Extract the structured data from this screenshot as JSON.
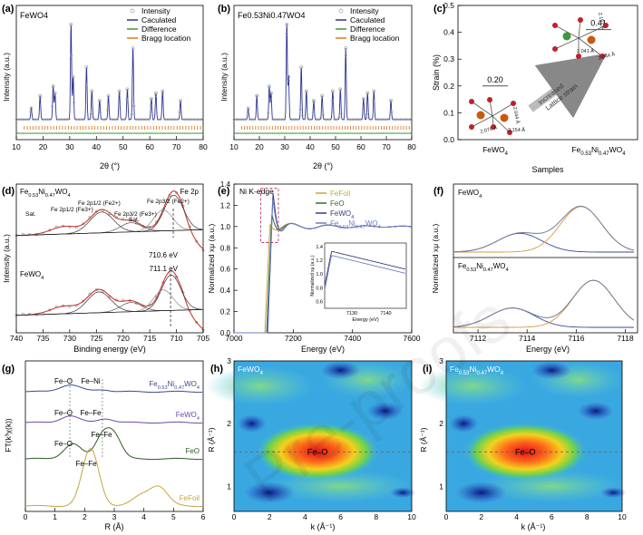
{
  "watermark": "Pre-proofs",
  "chart_data": [
    {
      "panel": "(a)",
      "type": "line",
      "sample": "FeWO4",
      "xlabel": "2θ (°)",
      "ylabel": "Intensity (a.u.)",
      "xlim": [
        10,
        80
      ],
      "xticks": [
        "10",
        "20",
        "30",
        "40",
        "50",
        "60",
        "70",
        "80"
      ],
      "legend": [
        "Intensity",
        "Caculated",
        "Difference",
        "Bragg location"
      ],
      "peaks_2theta": [
        15.6,
        18.9,
        23.8,
        24.5,
        30.5,
        31.3,
        36.3,
        38.3,
        41.2,
        44.5,
        48.6,
        51.6,
        53.7,
        60.6,
        62.3,
        64.8,
        71.5
      ]
    },
    {
      "panel": "(b)",
      "type": "line",
      "sample": "Fe0.53Ni0.47WO4",
      "xlabel": "2θ (°)",
      "ylabel": "Intensity (a.u.)",
      "xlim": [
        10,
        80
      ],
      "xticks": [
        "10",
        "20",
        "30",
        "40",
        "50",
        "60",
        "70",
        "80"
      ],
      "legend": [
        "Intensity",
        "Caculated",
        "Difference",
        "Bragg location"
      ],
      "peaks_2theta": [
        15.6,
        19.0,
        23.9,
        24.6,
        30.8,
        31.5,
        36.5,
        38.5,
        41.4,
        44.7,
        48.9,
        51.9,
        54.0,
        61.0,
        62.6,
        65.1,
        71.8
      ]
    },
    {
      "panel": "(c)",
      "type": "scatter",
      "xlabel": "Samples",
      "ylabel": "Strain (%)",
      "ylim": [
        0.0,
        0.5
      ],
      "yticks": [
        "0.0",
        "0.1",
        "0.2",
        "0.3",
        "0.4",
        "0.5"
      ],
      "categories": [
        "FeWO4",
        "Fe0.53Ni0.47WO4"
      ],
      "values": [
        0.2,
        0.41
      ],
      "value_labels": [
        "0.20",
        "0.41"
      ],
      "annotations": [
        "Increased",
        "Lattice strain"
      ],
      "bond_lengths_left": [
        "2.044 Å",
        "2.076 Å",
        "2.154 Å"
      ],
      "bond_lengths_right": [
        "2.157 Å",
        "2.041 Å",
        "2.044 Å"
      ]
    },
    {
      "panel": "(d)",
      "type": "line",
      "xlabel": "Binding energy (eV)",
      "ylabel": "Intensity (a.u.)",
      "xlim": [
        740,
        705
      ],
      "xticks": [
        "740",
        "735",
        "730",
        "725",
        "720",
        "715",
        "710",
        "705"
      ],
      "corner_label": "Fe 2p",
      "spectra": [
        "Fe0.53Ni0.47WO4",
        "FeWO4"
      ],
      "peak_labels": [
        "Sat.",
        "Fe 2p1/2 (Fe3+)",
        "Fe 2p1/2 (Fe2+)",
        "Sat.",
        "Fe 2p3/2 (Fe3+)",
        "Fe 2p3/2 (Fe2+)"
      ],
      "dashed_values_eV": [
        "710.6 eV",
        "711.1 eV"
      ]
    },
    {
      "panel": "(e)",
      "type": "line",
      "xlabel": "Energy (eV)",
      "ylabel": "Normalized xμ (a.u.)",
      "xlim": [
        7000,
        7600
      ],
      "ylim": [
        0.0,
        1.4
      ],
      "xticks": [
        "7000",
        "7200",
        "7400",
        "7600"
      ],
      "yticks": [
        "0.0",
        "0.2",
        "0.4",
        "0.6",
        "0.8",
        "1.0",
        "1.2",
        "1.4"
      ],
      "edge_label": "Ni K-edge",
      "legend": [
        "Fe Foil",
        "FeO",
        "FeWO4",
        "Fe0.53Ni0.47WO4"
      ],
      "series_colors": [
        "#c8a43a",
        "#2f6b2a",
        "#3b3b7a",
        "#6a7fc8"
      ],
      "inset": {
        "xlabel": "Energy (eV)",
        "ylabel": "Normalized xμ (a.u.)",
        "xticks": [
          "7130",
          "7140"
        ],
        "yticks": [
          "0.6",
          "0.8",
          "1.0",
          "1.2",
          "1.4"
        ]
      }
    },
    {
      "panel": "(f)",
      "type": "area",
      "xlabel": "Energy (eV)",
      "ylabel": "Normalized xμ (a.u.)",
      "xlim": [
        7111,
        7118
      ],
      "xticks": [
        "7112",
        "7114",
        "7116",
        "7118"
      ],
      "subpanels": [
        "FeWO4",
        "Fe0.53Ni0.47WO4"
      ],
      "peak_centers_eV": [
        [
          7113.7,
          7116.2
        ],
        [
          7113.4,
          7116.7
        ]
      ]
    },
    {
      "panel": "(g)",
      "type": "line",
      "xlabel": "R (Å)",
      "ylabel": "FT(k³χ(k))",
      "xlim": [
        0,
        6
      ],
      "xticks": [
        "0",
        "1",
        "2",
        "3",
        "4",
        "5",
        "6"
      ],
      "series": [
        "Fe0.53Ni0.47WO4",
        "FeWO4",
        "FeO",
        "Fe Foil"
      ],
      "series_colors": [
        "#3a4a8a",
        "#6a4aa0",
        "#2f5a2a",
        "#c8a43a"
      ],
      "peak_labels": [
        "Fe–O",
        "Fe–Ni",
        "Fe–O",
        "Fe–Fe",
        "Fe–O",
        "Fe–Fe",
        "Fe–Fe"
      ]
    },
    {
      "panel": "(h)",
      "type": "heatmap",
      "sample": "FeWO4",
      "xlabel": "k (Å⁻¹)",
      "ylabel": "R (Å⁻¹)",
      "xlim": [
        0,
        10
      ],
      "ylim": [
        0.6,
        3
      ],
      "xticks": [
        "0",
        "2",
        "4",
        "6",
        "8",
        "10"
      ],
      "yticks": [
        "1",
        "2",
        "3"
      ],
      "hotspot": {
        "k": 4.7,
        "R": 1.55,
        "label": "Fe–O"
      }
    },
    {
      "panel": "(i)",
      "type": "heatmap",
      "sample": "Fe0.53Ni0.47WO4",
      "xlabel": "k (Å⁻¹)",
      "ylabel": "R (Å⁻¹)",
      "xlim": [
        0,
        10
      ],
      "ylim": [
        0.6,
        3
      ],
      "xticks": [
        "0",
        "2",
        "4",
        "6",
        "8",
        "10"
      ],
      "yticks": [
        "1",
        "2",
        "3"
      ],
      "hotspot": {
        "k": 4.5,
        "R": 1.55,
        "label": "Fe–O"
      }
    }
  ]
}
